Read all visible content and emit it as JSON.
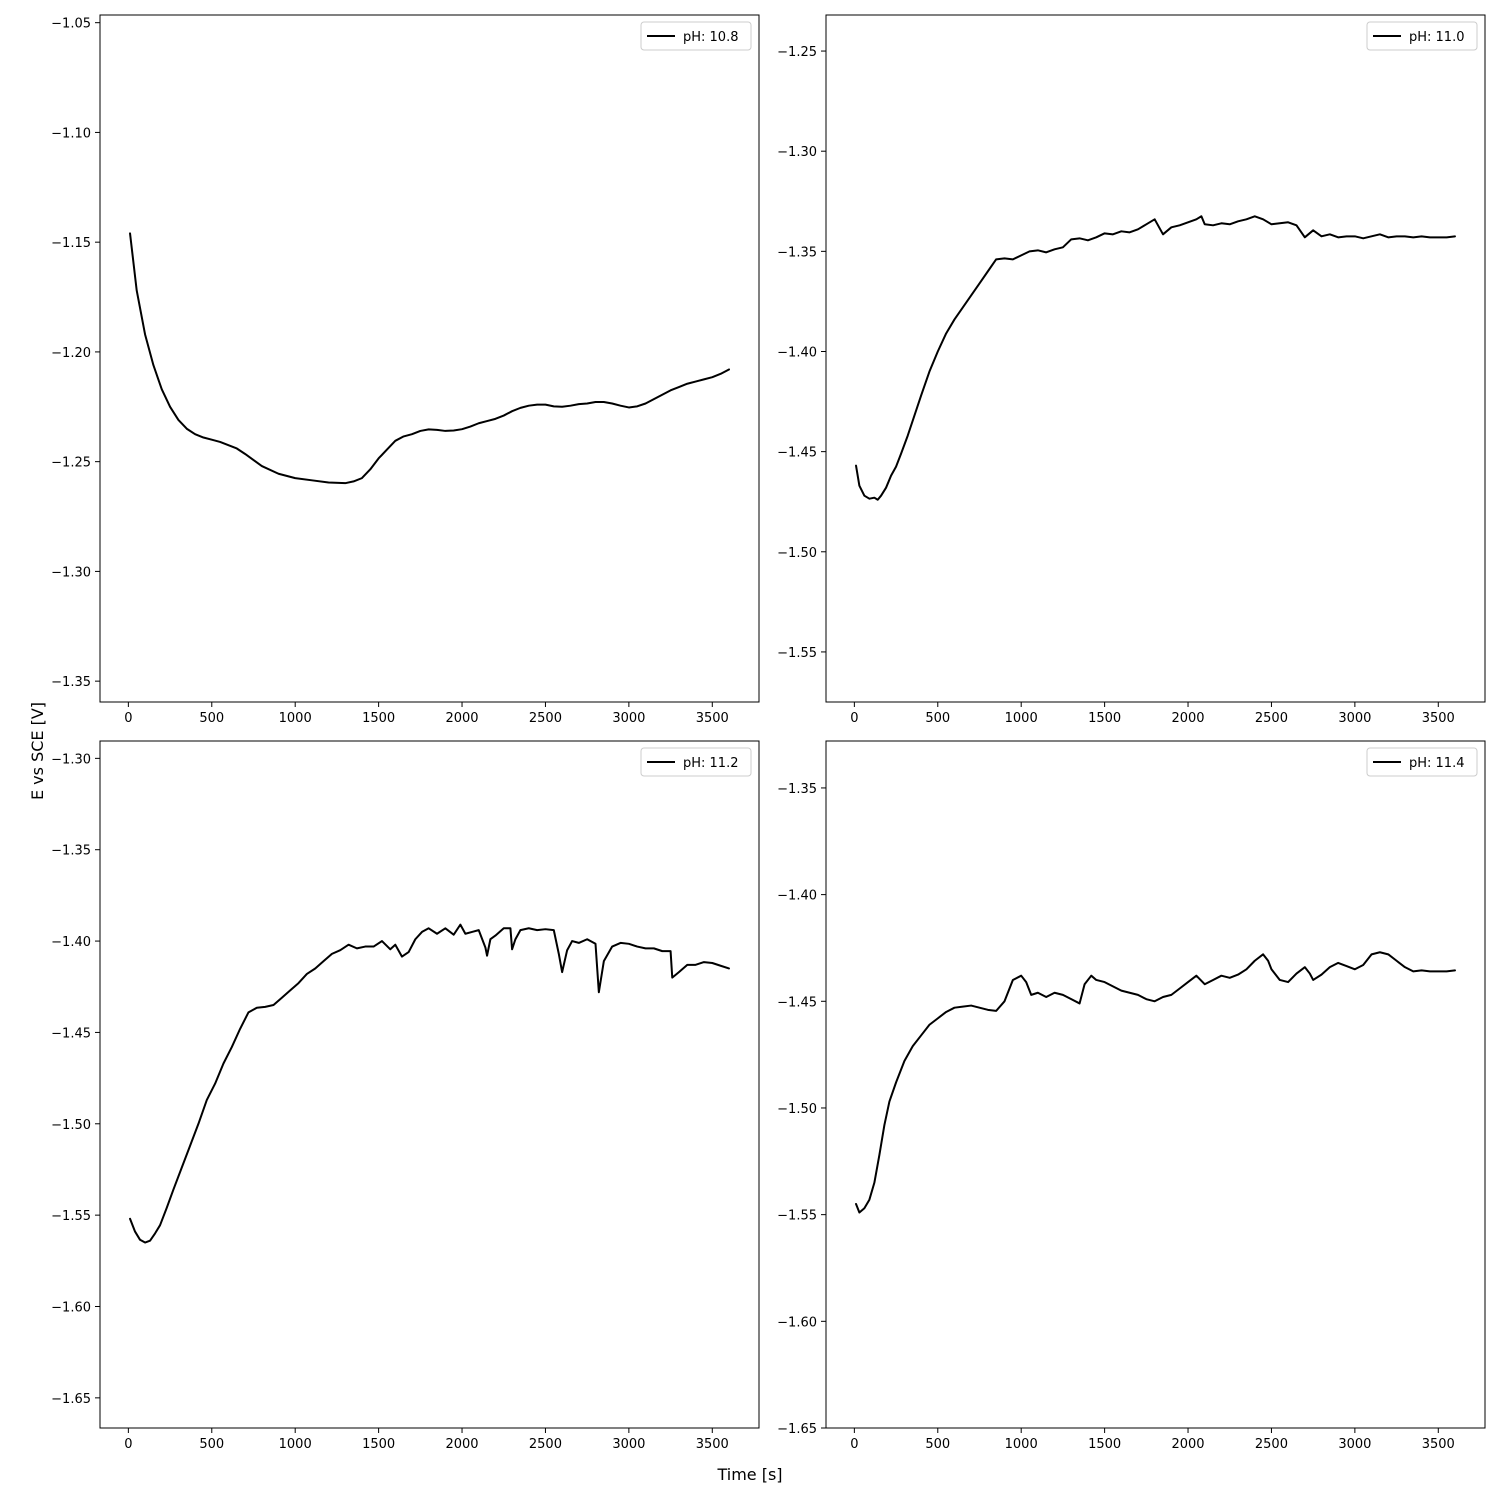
{
  "figure": {
    "xlabel": "Time [s]",
    "ylabel": "E vs SCE [V]"
  },
  "chart_data": [
    {
      "type": "line",
      "legend_location": "top-right",
      "grid": false,
      "xlim": [
        -170,
        3780
      ],
      "ylim": [
        -1.3595,
        -1.0465
      ],
      "xticks": [
        0,
        500,
        1000,
        1500,
        2000,
        2500,
        3000,
        3500
      ],
      "yticks": [
        -1.35,
        -1.3,
        -1.25,
        -1.2,
        -1.15,
        -1.1,
        -1.05
      ],
      "ytick_labels": [
        "−1.35",
        "−1.30",
        "−1.25",
        "−1.20",
        "−1.15",
        "−1.10",
        "−1.05"
      ],
      "series": [
        {
          "name": "pH: 10.8",
          "color": "#000000",
          "x": [
            10,
            50,
            100,
            150,
            200,
            250,
            300,
            350,
            400,
            450,
            500,
            550,
            600,
            650,
            700,
            800,
            900,
            1000,
            1100,
            1200,
            1300,
            1350,
            1400,
            1450,
            1500,
            1550,
            1600,
            1650,
            1700,
            1750,
            1800,
            1850,
            1900,
            1950,
            2000,
            2050,
            2100,
            2150,
            2200,
            2250,
            2300,
            2350,
            2400,
            2450,
            2500,
            2550,
            2600,
            2650,
            2700,
            2750,
            2800,
            2850,
            2900,
            2950,
            3000,
            3050,
            3100,
            3150,
            3200,
            3250,
            3300,
            3350,
            3400,
            3450,
            3500,
            3550,
            3600
          ],
          "y": [
            -1.146,
            -1.172,
            -1.192,
            -1.206,
            -1.217,
            -1.225,
            -1.231,
            -1.235,
            -1.2375,
            -1.239,
            -1.24,
            -1.241,
            -1.2425,
            -1.244,
            -1.2465,
            -1.252,
            -1.2555,
            -1.2575,
            -1.2585,
            -1.2595,
            -1.2598,
            -1.259,
            -1.2575,
            -1.2535,
            -1.2485,
            -1.2445,
            -1.2405,
            -1.2385,
            -1.2375,
            -1.236,
            -1.2353,
            -1.2355,
            -1.236,
            -1.2358,
            -1.2352,
            -1.234,
            -1.2325,
            -1.2315,
            -1.2305,
            -1.229,
            -1.227,
            -1.2255,
            -1.2245,
            -1.224,
            -1.224,
            -1.2248,
            -1.225,
            -1.2245,
            -1.2238,
            -1.2235,
            -1.2228,
            -1.2228,
            -1.2235,
            -1.2245,
            -1.2253,
            -1.2248,
            -1.2235,
            -1.2215,
            -1.2195,
            -1.2175,
            -1.216,
            -1.2145,
            -1.2135,
            -1.2125,
            -1.2115,
            -1.21,
            -1.208
          ]
        }
      ]
    },
    {
      "type": "line",
      "legend_location": "top-right",
      "grid": false,
      "xlim": [
        -170,
        3780
      ],
      "ylim": [
        -1.575,
        -1.232
      ],
      "xticks": [
        0,
        500,
        1000,
        1500,
        2000,
        2500,
        3000,
        3500
      ],
      "yticks": [
        -1.55,
        -1.5,
        -1.45,
        -1.4,
        -1.35,
        -1.3,
        -1.25
      ],
      "ytick_labels": [
        "−1.55",
        "−1.50",
        "−1.45",
        "−1.40",
        "−1.35",
        "−1.30",
        "−1.25"
      ],
      "series": [
        {
          "name": "pH: 11.0",
          "color": "#000000",
          "x": [
            10,
            30,
            60,
            90,
            120,
            140,
            160,
            190,
            220,
            250,
            280,
            320,
            360,
            400,
            450,
            500,
            550,
            600,
            650,
            700,
            750,
            800,
            850,
            900,
            950,
            1000,
            1050,
            1100,
            1150,
            1200,
            1250,
            1300,
            1350,
            1400,
            1450,
            1500,
            1550,
            1600,
            1650,
            1700,
            1750,
            1800,
            1850,
            1900,
            1950,
            2000,
            2050,
            2080,
            2100,
            2150,
            2200,
            2250,
            2300,
            2350,
            2400,
            2450,
            2500,
            2550,
            2600,
            2650,
            2700,
            2750,
            2800,
            2850,
            2900,
            2950,
            3000,
            3050,
            3100,
            3150,
            3200,
            3250,
            3300,
            3350,
            3400,
            3450,
            3500,
            3550,
            3600
          ],
          "y": [
            -1.457,
            -1.467,
            -1.472,
            -1.4735,
            -1.473,
            -1.474,
            -1.472,
            -1.468,
            -1.462,
            -1.4575,
            -1.451,
            -1.442,
            -1.432,
            -1.422,
            -1.41,
            -1.4,
            -1.391,
            -1.384,
            -1.378,
            -1.372,
            -1.366,
            -1.36,
            -1.354,
            -1.3535,
            -1.354,
            -1.352,
            -1.35,
            -1.3495,
            -1.3505,
            -1.349,
            -1.348,
            -1.344,
            -1.3435,
            -1.3445,
            -1.343,
            -1.341,
            -1.3415,
            -1.34,
            -1.3405,
            -1.339,
            -1.3365,
            -1.334,
            -1.3415,
            -1.338,
            -1.337,
            -1.3355,
            -1.334,
            -1.3325,
            -1.3365,
            -1.337,
            -1.336,
            -1.3365,
            -1.335,
            -1.334,
            -1.3325,
            -1.334,
            -1.3365,
            -1.336,
            -1.3355,
            -1.337,
            -1.343,
            -1.3395,
            -1.3425,
            -1.3415,
            -1.343,
            -1.3425,
            -1.3425,
            -1.3435,
            -1.3425,
            -1.3415,
            -1.343,
            -1.3425,
            -1.3425,
            -1.343,
            -1.3425,
            -1.343,
            -1.343,
            -1.343,
            -1.3425
          ]
        }
      ]
    },
    {
      "type": "line",
      "legend_location": "top-right",
      "grid": false,
      "xlim": [
        -170,
        3780
      ],
      "ylim": [
        -1.6665,
        -1.2905
      ],
      "xticks": [
        0,
        500,
        1000,
        1500,
        2000,
        2500,
        3000,
        3500
      ],
      "yticks": [
        -1.65,
        -1.6,
        -1.55,
        -1.5,
        -1.45,
        -1.4,
        -1.35,
        -1.3
      ],
      "ytick_labels": [
        "−1.65",
        "−1.60",
        "−1.55",
        "−1.50",
        "−1.45",
        "−1.40",
        "−1.35",
        "−1.30"
      ],
      "series": [
        {
          "name": "pH: 11.2",
          "color": "#000000",
          "x": [
            10,
            40,
            70,
            100,
            130,
            160,
            190,
            230,
            270,
            320,
            370,
            420,
            470,
            520,
            570,
            620,
            670,
            720,
            770,
            820,
            870,
            920,
            970,
            1020,
            1070,
            1120,
            1170,
            1220,
            1270,
            1320,
            1370,
            1420,
            1470,
            1520,
            1570,
            1600,
            1640,
            1680,
            1720,
            1760,
            1800,
            1850,
            1900,
            1950,
            1990,
            2020,
            2060,
            2100,
            2140,
            2150,
            2170,
            2200,
            2250,
            2290,
            2300,
            2320,
            2350,
            2400,
            2450,
            2500,
            2550,
            2580,
            2600,
            2630,
            2660,
            2700,
            2750,
            2800,
            2820,
            2850,
            2900,
            2950,
            3000,
            3050,
            3100,
            3150,
            3200,
            3250,
            3260,
            3300,
            3350,
            3400,
            3450,
            3500,
            3550,
            3600
          ],
          "y": [
            -1.552,
            -1.559,
            -1.5635,
            -1.565,
            -1.564,
            -1.56,
            -1.5555,
            -1.546,
            -1.536,
            -1.524,
            -1.512,
            -1.5,
            -1.487,
            -1.478,
            -1.467,
            -1.458,
            -1.448,
            -1.439,
            -1.4365,
            -1.436,
            -1.435,
            -1.431,
            -1.427,
            -1.423,
            -1.418,
            -1.415,
            -1.411,
            -1.407,
            -1.405,
            -1.402,
            -1.404,
            -1.403,
            -1.403,
            -1.4,
            -1.4045,
            -1.402,
            -1.4085,
            -1.406,
            -1.399,
            -1.395,
            -1.393,
            -1.396,
            -1.393,
            -1.3965,
            -1.391,
            -1.396,
            -1.395,
            -1.394,
            -1.4035,
            -1.408,
            -1.399,
            -1.397,
            -1.393,
            -1.393,
            -1.4045,
            -1.399,
            -1.394,
            -1.393,
            -1.394,
            -1.3935,
            -1.394,
            -1.407,
            -1.417,
            -1.405,
            -1.4,
            -1.401,
            -1.399,
            -1.4015,
            -1.428,
            -1.411,
            -1.403,
            -1.401,
            -1.4015,
            -1.403,
            -1.404,
            -1.404,
            -1.4055,
            -1.4055,
            -1.42,
            -1.417,
            -1.413,
            -1.413,
            -1.4115,
            -1.412,
            -1.4135,
            -1.415
          ]
        }
      ]
    },
    {
      "type": "line",
      "legend_location": "top-right",
      "grid": false,
      "xlim": [
        -170,
        3780
      ],
      "ylim": [
        -1.65,
        -1.328
      ],
      "xticks": [
        0,
        500,
        1000,
        1500,
        2000,
        2500,
        3000,
        3500
      ],
      "yticks": [
        -1.65,
        -1.6,
        -1.55,
        -1.5,
        -1.45,
        -1.4,
        -1.35
      ],
      "ytick_labels": [
        "−1.65",
        "−1.60",
        "−1.55",
        "−1.50",
        "−1.45",
        "−1.40",
        "−1.35"
      ],
      "series": [
        {
          "name": "pH: 11.4",
          "color": "#000000",
          "x": [
            10,
            30,
            60,
            90,
            120,
            150,
            180,
            210,
            250,
            300,
            350,
            400,
            450,
            500,
            550,
            600,
            650,
            700,
            750,
            800,
            850,
            900,
            950,
            1000,
            1030,
            1060,
            1100,
            1150,
            1200,
            1250,
            1300,
            1350,
            1380,
            1420,
            1450,
            1500,
            1550,
            1600,
            1650,
            1700,
            1750,
            1800,
            1850,
            1900,
            1950,
            2000,
            2050,
            2100,
            2150,
            2200,
            2250,
            2300,
            2350,
            2400,
            2450,
            2480,
            2500,
            2550,
            2600,
            2650,
            2700,
            2730,
            2750,
            2800,
            2850,
            2900,
            2950,
            3000,
            3050,
            3100,
            3150,
            3200,
            3250,
            3300,
            3350,
            3400,
            3450,
            3500,
            3550,
            3600
          ],
          "y": [
            -1.545,
            -1.549,
            -1.547,
            -1.543,
            -1.535,
            -1.522,
            -1.508,
            -1.497,
            -1.488,
            -1.478,
            -1.471,
            -1.466,
            -1.461,
            -1.458,
            -1.455,
            -1.453,
            -1.4525,
            -1.452,
            -1.453,
            -1.454,
            -1.4545,
            -1.45,
            -1.44,
            -1.438,
            -1.441,
            -1.447,
            -1.446,
            -1.448,
            -1.446,
            -1.447,
            -1.449,
            -1.451,
            -1.442,
            -1.438,
            -1.44,
            -1.441,
            -1.443,
            -1.445,
            -1.446,
            -1.447,
            -1.449,
            -1.45,
            -1.448,
            -1.447,
            -1.444,
            -1.441,
            -1.438,
            -1.442,
            -1.44,
            -1.438,
            -1.439,
            -1.4375,
            -1.435,
            -1.431,
            -1.428,
            -1.431,
            -1.435,
            -1.44,
            -1.441,
            -1.437,
            -1.434,
            -1.437,
            -1.44,
            -1.4375,
            -1.434,
            -1.432,
            -1.4335,
            -1.435,
            -1.433,
            -1.428,
            -1.427,
            -1.428,
            -1.431,
            -1.434,
            -1.436,
            -1.4355,
            -1.436,
            -1.436,
            -1.436,
            -1.4355
          ]
        }
      ]
    }
  ]
}
